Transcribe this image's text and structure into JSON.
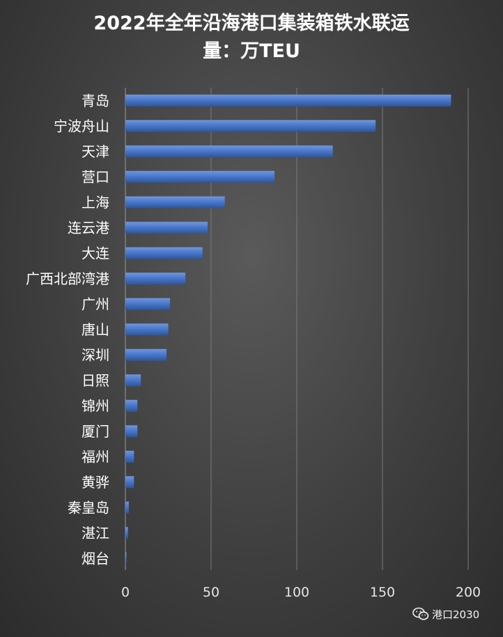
{
  "chart_data": {
    "type": "bar",
    "orientation": "horizontal",
    "title_line1": "2022年全年沿海港口集装箱铁水联运",
    "title_line2": "量：万TEU",
    "categories": [
      "青岛",
      "宁波舟山",
      "天津",
      "营口",
      "上海",
      "连云港",
      "大连",
      "广西北部湾港",
      "广州",
      "唐山",
      "深圳",
      "日照",
      "锦州",
      "厦门",
      "福州",
      "黄骅",
      "秦皇岛",
      "湛江",
      "烟台"
    ],
    "values": [
      190,
      146,
      121,
      87,
      58,
      48,
      45,
      35,
      26,
      25,
      24,
      9,
      7,
      7,
      5,
      5,
      2,
      1.5,
      0.5
    ],
    "xlim": [
      0,
      200
    ],
    "xticks": [
      "0",
      "50",
      "100",
      "150",
      "200"
    ],
    "grid": true,
    "legend": "none",
    "bar_color": "#4472c4",
    "background_color": "#404040"
  },
  "watermark": {
    "icon": "wechat-icon",
    "text": "港口2030"
  }
}
